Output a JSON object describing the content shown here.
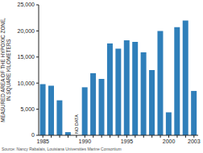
{
  "chart_data": {
    "type": "bar",
    "y_label": "MEASURED AREA OF THE HYPOXIC ZONE, IN SQUARE KILOMETERS",
    "categories": [
      "1985",
      null,
      null,
      null,
      null,
      "1990",
      null,
      null,
      null,
      null,
      "1995",
      null,
      null,
      null,
      null,
      "2000",
      null,
      null,
      "2003"
    ],
    "values": [
      9800,
      9500,
      6700,
      600,
      null,
      9200,
      11900,
      10800,
      17600,
      16600,
      18200,
      17900,
      15900,
      12500,
      20000,
      4400,
      20700,
      22000,
      8500
    ],
    "color": "#2f7fba",
    "ylim": [
      0,
      25000
    ],
    "yticks": [
      0,
      {
        "value": 5000,
        "label": "5,000"
      },
      {
        "value": 10000,
        "label": "10,000"
      },
      {
        "value": 15000,
        "label": "15,000"
      },
      {
        "value": 20000,
        "label": "20,000"
      },
      {
        "value": 25000,
        "label": "25,000"
      }
    ],
    "grid": false,
    "annotation": "NO DATA",
    "source": "Source: Nancy Rabalais, Louisiana Universities Marine Consortium"
  }
}
